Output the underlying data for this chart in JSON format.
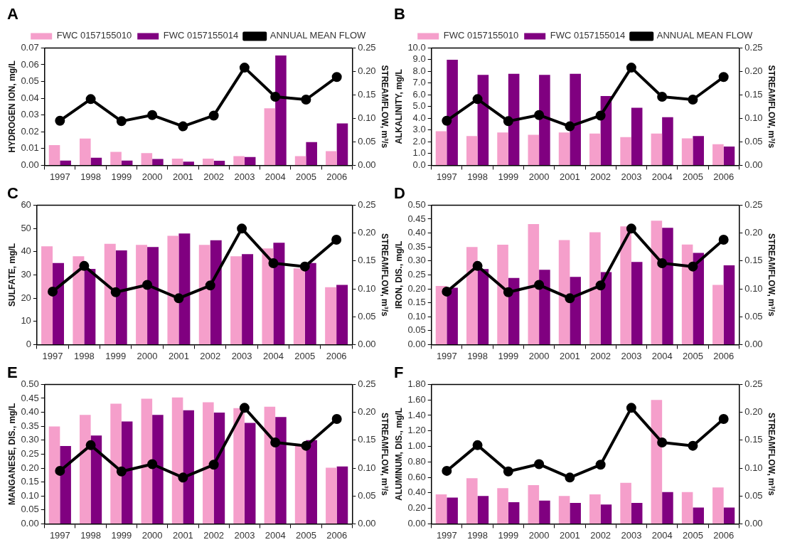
{
  "chart_data": [
    {
      "type": "bar",
      "title": "A",
      "categories": [
        "1997",
        "1998",
        "1999",
        "2000",
        "2001",
        "2002",
        "2003",
        "2004",
        "2005",
        "2006"
      ],
      "ylabel": "HYDROGEN ION, mg/L",
      "y2label": "STREAMFLOW, m³/s",
      "legend": "top",
      "grid": false,
      "marker": "circle",
      "ylim": [
        0,
        0.07
      ],
      "yticks": [
        {
          "value": 0,
          "label": "0.00"
        },
        0.01,
        0.02,
        0.03,
        0.04,
        0.05,
        0.06,
        0.07
      ],
      "y2lim": [
        0,
        0.25
      ],
      "y2ticks": [
        {
          "value": 0,
          "label": "0.00"
        },
        0.05,
        {
          "value": 0.1,
          "label": "0.10"
        },
        0.15,
        {
          "value": 0.2,
          "label": "0.20"
        },
        0.25
      ],
      "series": [
        {
          "name": "FWC 0157155010",
          "color": "#f59fcb",
          "values": [
            0.012,
            0.016,
            0.008,
            0.0073,
            0.004,
            0.004,
            0.0055,
            0.034,
            0.0055,
            0.0084
          ]
        },
        {
          "name": "FWC 0157155014",
          "color": "#800080",
          "values": [
            0.0028,
            0.0045,
            0.0028,
            0.0038,
            0.0022,
            0.0027,
            0.0049,
            0.0655,
            0.0138,
            0.025
          ]
        },
        {
          "name": "ANNUAL MEAN FLOW",
          "type": "line",
          "axis": "y2",
          "color": "#000000",
          "values": [
            0.095,
            0.141,
            0.094,
            0.107,
            0.083,
            0.106,
            0.208,
            0.146,
            0.14,
            0.188
          ]
        }
      ]
    },
    {
      "type": "bar",
      "title": "B",
      "categories": [
        "1997",
        "1998",
        "1999",
        "2000",
        "2001",
        "2002",
        "2003",
        "2004",
        "2005",
        "2006"
      ],
      "ylabel": "ALKALINITY, mg/L",
      "y2label": "STREAMFLOW, m³/s",
      "legend": "top",
      "grid": false,
      "marker": "circle",
      "ylim": [
        0,
        10
      ],
      "yticks": [
        {
          "value": 0,
          "label": "0.0"
        },
        {
          "value": 1,
          "label": "1.0"
        },
        {
          "value": 2,
          "label": "2.0"
        },
        {
          "value": 3,
          "label": "3.0"
        },
        {
          "value": 4,
          "label": "4.0"
        },
        {
          "value": 5,
          "label": "5.0"
        },
        {
          "value": 6,
          "label": "6.0"
        },
        {
          "value": 7,
          "label": "7.0"
        },
        {
          "value": 8,
          "label": "8.0"
        },
        {
          "value": 9,
          "label": "9.0"
        },
        {
          "value": 10,
          "label": "10.0"
        }
      ],
      "y2lim": [
        0,
        0.25
      ],
      "y2ticks": [
        {
          "value": 0,
          "label": "0.00"
        },
        0.05,
        {
          "value": 0.1,
          "label": "0.10"
        },
        0.15,
        {
          "value": 0.2,
          "label": "0.20"
        },
        0.25
      ],
      "series": [
        {
          "name": "FWC 0157155010",
          "color": "#f59fcb",
          "values": [
            2.9,
            2.5,
            2.8,
            2.6,
            2.8,
            2.7,
            2.4,
            2.7,
            2.3,
            1.8
          ]
        },
        {
          "name": "FWC 0157155014",
          "color": "#800080",
          "values": [
            9.0,
            7.7,
            7.8,
            7.7,
            7.8,
            5.9,
            4.9,
            4.1,
            2.5,
            1.6
          ]
        },
        {
          "name": "ANNUAL MEAN FLOW",
          "type": "line",
          "axis": "y2",
          "color": "#000000",
          "values": [
            0.095,
            0.141,
            0.094,
            0.107,
            0.083,
            0.106,
            0.208,
            0.146,
            0.14,
            0.188
          ]
        }
      ]
    },
    {
      "type": "bar",
      "title": "C",
      "categories": [
        "1997",
        "1998",
        "1999",
        "2000",
        "2001",
        "2002",
        "2003",
        "2004",
        "2005",
        "2006"
      ],
      "ylabel": "SULFATE, mg/L",
      "y2label": "STREAMFLOW, m³/s",
      "grid": false,
      "marker": "circle",
      "ylim": [
        0,
        60
      ],
      "yticks": [
        0,
        10,
        20,
        30,
        40,
        50,
        60
      ],
      "y2lim": [
        0,
        0.25
      ],
      "y2ticks": [
        {
          "value": 0,
          "label": "0.00"
        },
        0.05,
        {
          "value": 0.1,
          "label": "0.10"
        },
        0.15,
        {
          "value": 0.2,
          "label": "0.20"
        },
        0.25
      ],
      "series": [
        {
          "color": "#f59fcb",
          "values": [
            42.3,
            38.0,
            43.4,
            42.9,
            46.8,
            42.9,
            38.0,
            41.4,
            32.8,
            24.7
          ]
        },
        {
          "color": "#800080",
          "values": [
            35.1,
            32.6,
            40.5,
            42.0,
            47.8,
            44.9,
            38.9,
            43.8,
            35.1,
            25.7
          ]
        },
        {
          "type": "line",
          "axis": "y2",
          "color": "#000000",
          "values": [
            0.095,
            0.141,
            0.094,
            0.107,
            0.083,
            0.106,
            0.208,
            0.146,
            0.14,
            0.188
          ]
        }
      ]
    },
    {
      "type": "bar",
      "title": "D",
      "categories": [
        "1997",
        "1998",
        "1999",
        "2000",
        "2001",
        "2002",
        "2003",
        "2004",
        "2005",
        "2006"
      ],
      "ylabel": "IRON, DIS., mg/L",
      "y2label": "STREAMFLOW, m³/s",
      "grid": false,
      "marker": "circle",
      "ylim": [
        0,
        0.5
      ],
      "yticks": [
        {
          "value": 0,
          "label": "0.00"
        },
        0.05,
        {
          "value": 0.1,
          "label": "0.10"
        },
        0.15,
        {
          "value": 0.2,
          "label": "0.20"
        },
        0.25,
        {
          "value": 0.3,
          "label": "0.30"
        },
        0.35,
        {
          "value": 0.4,
          "label": "0.40"
        },
        0.45,
        {
          "value": 0.5,
          "label": "0.50"
        }
      ],
      "y2lim": [
        0,
        0.25
      ],
      "y2ticks": [
        {
          "value": 0,
          "label": "0.00"
        },
        0.05,
        {
          "value": 0.1,
          "label": "0.10"
        },
        0.15,
        {
          "value": 0.2,
          "label": "0.20"
        },
        0.25
      ],
      "series": [
        {
          "color": "#f59fcb",
          "values": [
            0.21,
            0.35,
            0.358,
            0.432,
            0.375,
            0.403,
            0.424,
            0.444,
            0.359,
            0.214
          ]
        },
        {
          "color": "#800080",
          "values": [
            0.204,
            0.271,
            0.239,
            0.268,
            0.243,
            0.26,
            0.296,
            0.419,
            0.329,
            0.284
          ]
        },
        {
          "type": "line",
          "axis": "y2",
          "color": "#000000",
          "values": [
            0.095,
            0.141,
            0.094,
            0.107,
            0.083,
            0.106,
            0.208,
            0.146,
            0.14,
            0.188
          ]
        }
      ]
    },
    {
      "type": "bar",
      "title": "E",
      "categories": [
        "1997",
        "1998",
        "1999",
        "2000",
        "2001",
        "2002",
        "2003",
        "2004",
        "2005",
        "2006"
      ],
      "ylabel": "MANGANESE, DIS., mg/L",
      "y2label": "STREAMFLOW, m³/s",
      "grid": false,
      "marker": "circle",
      "ylim": [
        0,
        0.5
      ],
      "yticks": [
        {
          "value": 0,
          "label": "0.00"
        },
        0.05,
        {
          "value": 0.1,
          "label": "0.10"
        },
        0.15,
        {
          "value": 0.2,
          "label": "0.20"
        },
        0.25,
        {
          "value": 0.3,
          "label": "0.30"
        },
        0.35,
        {
          "value": 0.4,
          "label": "0.40"
        },
        0.45,
        {
          "value": 0.5,
          "label": "0.50"
        }
      ],
      "y2lim": [
        0,
        0.25
      ],
      "y2ticks": [
        {
          "value": 0,
          "label": "0.00"
        },
        0.05,
        {
          "value": 0.1,
          "label": "0.10"
        },
        0.15,
        {
          "value": 0.2,
          "label": "0.20"
        },
        0.25
      ],
      "series": [
        {
          "color": "#f59fcb",
          "values": [
            0.349,
            0.391,
            0.431,
            0.449,
            0.453,
            0.436,
            0.415,
            0.42,
            0.28,
            0.201
          ]
        },
        {
          "color": "#800080",
          "values": [
            0.279,
            0.317,
            0.367,
            0.391,
            0.407,
            0.399,
            0.362,
            0.383,
            0.3,
            0.206
          ]
        },
        {
          "type": "line",
          "axis": "y2",
          "color": "#000000",
          "values": [
            0.095,
            0.141,
            0.094,
            0.107,
            0.083,
            0.106,
            0.208,
            0.146,
            0.14,
            0.188
          ]
        }
      ]
    },
    {
      "type": "bar",
      "title": "F",
      "categories": [
        "1997",
        "1998",
        "1999",
        "2000",
        "2001",
        "2002",
        "2003",
        "2004",
        "2005",
        "2006"
      ],
      "ylabel": "ALUMINUM, DIS., mg/L",
      "y2label": "STREAMFLOW, m³/s",
      "grid": false,
      "marker": "circle",
      "ylim": [
        0,
        1.8
      ],
      "yticks": [
        {
          "value": 0,
          "label": "0.00"
        },
        {
          "value": 0.2,
          "label": "0.20"
        },
        {
          "value": 0.4,
          "label": "0.40"
        },
        {
          "value": 0.6,
          "label": "0.60"
        },
        {
          "value": 0.8,
          "label": "0.80"
        },
        {
          "value": 1,
          "label": "1.00"
        },
        {
          "value": 1.2,
          "label": "1.20"
        },
        {
          "value": 1.4,
          "label": "1.40"
        },
        {
          "value": 1.6,
          "label": "1.60"
        },
        {
          "value": 1.8,
          "label": "1.80"
        }
      ],
      "y2lim": [
        0,
        0.25
      ],
      "y2ticks": [
        {
          "value": 0,
          "label": "0.00"
        },
        0.05,
        {
          "value": 0.1,
          "label": "0.10"
        },
        0.15,
        {
          "value": 0.2,
          "label": "0.20"
        },
        0.25
      ],
      "series": [
        {
          "color": "#f59fcb",
          "values": [
            0.38,
            0.59,
            0.46,
            0.5,
            0.36,
            0.38,
            0.53,
            1.6,
            0.41,
            0.47
          ]
        },
        {
          "color": "#800080",
          "values": [
            0.34,
            0.36,
            0.28,
            0.3,
            0.27,
            0.25,
            0.27,
            0.41,
            0.21,
            0.21
          ]
        },
        {
          "type": "line",
          "axis": "y2",
          "color": "#000000",
          "values": [
            0.095,
            0.141,
            0.094,
            0.107,
            0.083,
            0.106,
            0.208,
            0.146,
            0.14,
            0.188
          ]
        }
      ]
    }
  ]
}
